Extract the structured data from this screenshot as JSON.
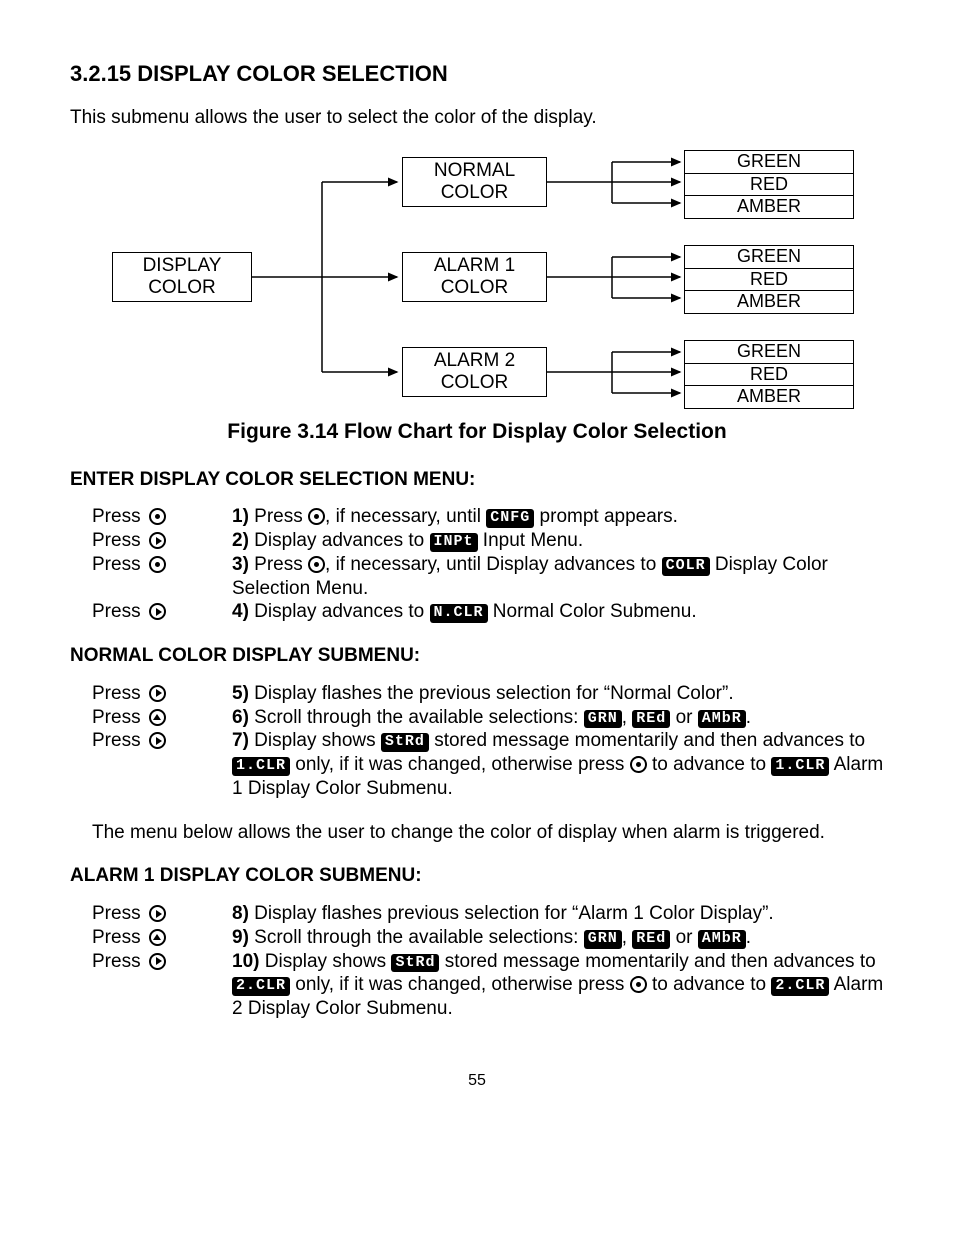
{
  "title": "3.2.15 DISPLAY COLOR SELECTION",
  "intro": "This submenu allows the user to select  the color of the display.",
  "figure_caption": "Figure 3.14 Flow Chart for Display Color Selection",
  "page_number": "55",
  "flowchart": {
    "root": {
      "line1": "DISPLAY",
      "line2": "COLOR"
    },
    "mids": [
      {
        "line1": "NORMAL",
        "line2": "COLOR"
      },
      {
        "line1": "ALARM 1",
        "line2": "COLOR"
      },
      {
        "line1": "ALARM 2",
        "line2": "COLOR"
      }
    ],
    "options": [
      "GREEN",
      "RED",
      "AMBER"
    ]
  },
  "sections": [
    {
      "heading": "ENTER DISPLAY COLOR SELECTION MENU:",
      "steps": [
        {
          "press": "Press",
          "btn": "dot",
          "num": "1)",
          "frags": [
            {
              "t": "text",
              "v": " Press "
            },
            {
              "t": "btn",
              "v": "dot"
            },
            {
              "t": "text",
              "v": ", if necessary, until "
            },
            {
              "t": "lcd",
              "v": "CNFG"
            },
            {
              "t": "text",
              "v": " prompt appears."
            }
          ]
        },
        {
          "press": "Press",
          "btn": "right",
          "num": "2)",
          "frags": [
            {
              "t": "text",
              "v": " Display advances to "
            },
            {
              "t": "lcd",
              "v": "INPt"
            },
            {
              "t": "text",
              "v": " Input Menu."
            }
          ]
        },
        {
          "press": "Press",
          "btn": "dot",
          "num": "3)",
          "frags": [
            {
              "t": "text",
              "v": " Press "
            },
            {
              "t": "btn",
              "v": "dot"
            },
            {
              "t": "text",
              "v": ", if necessary, until Display advances to "
            },
            {
              "t": "lcd",
              "v": "COLR"
            },
            {
              "t": "text",
              "v": " Display Color Selection Menu."
            }
          ]
        },
        {
          "press": "Press",
          "btn": "right",
          "num": "4)",
          "frags": [
            {
              "t": "text",
              "v": " Display advances to "
            },
            {
              "t": "lcd",
              "v": "N.CLR"
            },
            {
              "t": "text",
              "v": " Normal Color Submenu."
            }
          ]
        }
      ]
    },
    {
      "heading": "NORMAL COLOR DISPLAY SUBMENU:",
      "steps": [
        {
          "press": "Press",
          "btn": "right",
          "num": "5)",
          "frags": [
            {
              "t": "text",
              "v": " Display flashes the previous selection for “Normal Color”."
            }
          ]
        },
        {
          "press": "Press",
          "btn": "up",
          "num": "6)",
          "frags": [
            {
              "t": "text",
              "v": " Scroll through the available selections: "
            },
            {
              "t": "lcd",
              "v": "GRN"
            },
            {
              "t": "text",
              "v": ", "
            },
            {
              "t": "lcd",
              "v": "REd"
            },
            {
              "t": "text",
              "v": " or "
            },
            {
              "t": "lcd",
              "v": "AMbR"
            },
            {
              "t": "text",
              "v": "."
            }
          ]
        },
        {
          "press": "Press",
          "btn": "right",
          "num": "7)",
          "frags": [
            {
              "t": "text",
              "v": " Display shows "
            },
            {
              "t": "lcd",
              "v": "StRd"
            },
            {
              "t": "text",
              "v": " stored message momentarily and then advances to "
            },
            {
              "t": "lcd",
              "v": "1.CLR"
            },
            {
              "t": "text",
              "v": " only, if it was changed, otherwise press "
            },
            {
              "t": "btn",
              "v": "dot"
            },
            {
              "t": "text",
              "v": " to advance to "
            },
            {
              "t": "lcd",
              "v": "1.CLR"
            },
            {
              "t": "text",
              "v": " Alarm 1 Display Color Submenu."
            }
          ]
        }
      ],
      "note": "The menu below allows the user to change the color of display when alarm is triggered."
    },
    {
      "heading": "ALARM 1 DISPLAY COLOR SUBMENU:",
      "steps": [
        {
          "press": "Press",
          "btn": "right",
          "num": "8)",
          "frags": [
            {
              "t": "text",
              "v": " Display flashes previous selection for “Alarm 1 Color Display”."
            }
          ]
        },
        {
          "press": "Press",
          "btn": "up",
          "num": "9)",
          "frags": [
            {
              "t": "text",
              "v": " Scroll through the available selections: "
            },
            {
              "t": "lcd",
              "v": "GRN"
            },
            {
              "t": "text",
              "v": ", "
            },
            {
              "t": "lcd",
              "v": "REd"
            },
            {
              "t": "text",
              "v": " or "
            },
            {
              "t": "lcd",
              "v": "AMbR"
            },
            {
              "t": "text",
              "v": "."
            }
          ]
        },
        {
          "press": "Press",
          "btn": "right",
          "num": "10)",
          "frags": [
            {
              "t": "text",
              "v": " Display shows "
            },
            {
              "t": "lcd",
              "v": "StRd"
            },
            {
              "t": "text",
              "v": " stored message momentarily and then advances to "
            },
            {
              "t": "lcd",
              "v": "2.CLR"
            },
            {
              "t": "text",
              "v": " only, if it was changed, otherwise press "
            },
            {
              "t": "btn",
              "v": "dot"
            },
            {
              "t": "text",
              "v": " to advance to "
            },
            {
              "t": "lcd",
              "v": "2.CLR"
            },
            {
              "t": "text",
              "v": " Alarm 2 Display Color Submenu."
            }
          ]
        }
      ]
    }
  ]
}
